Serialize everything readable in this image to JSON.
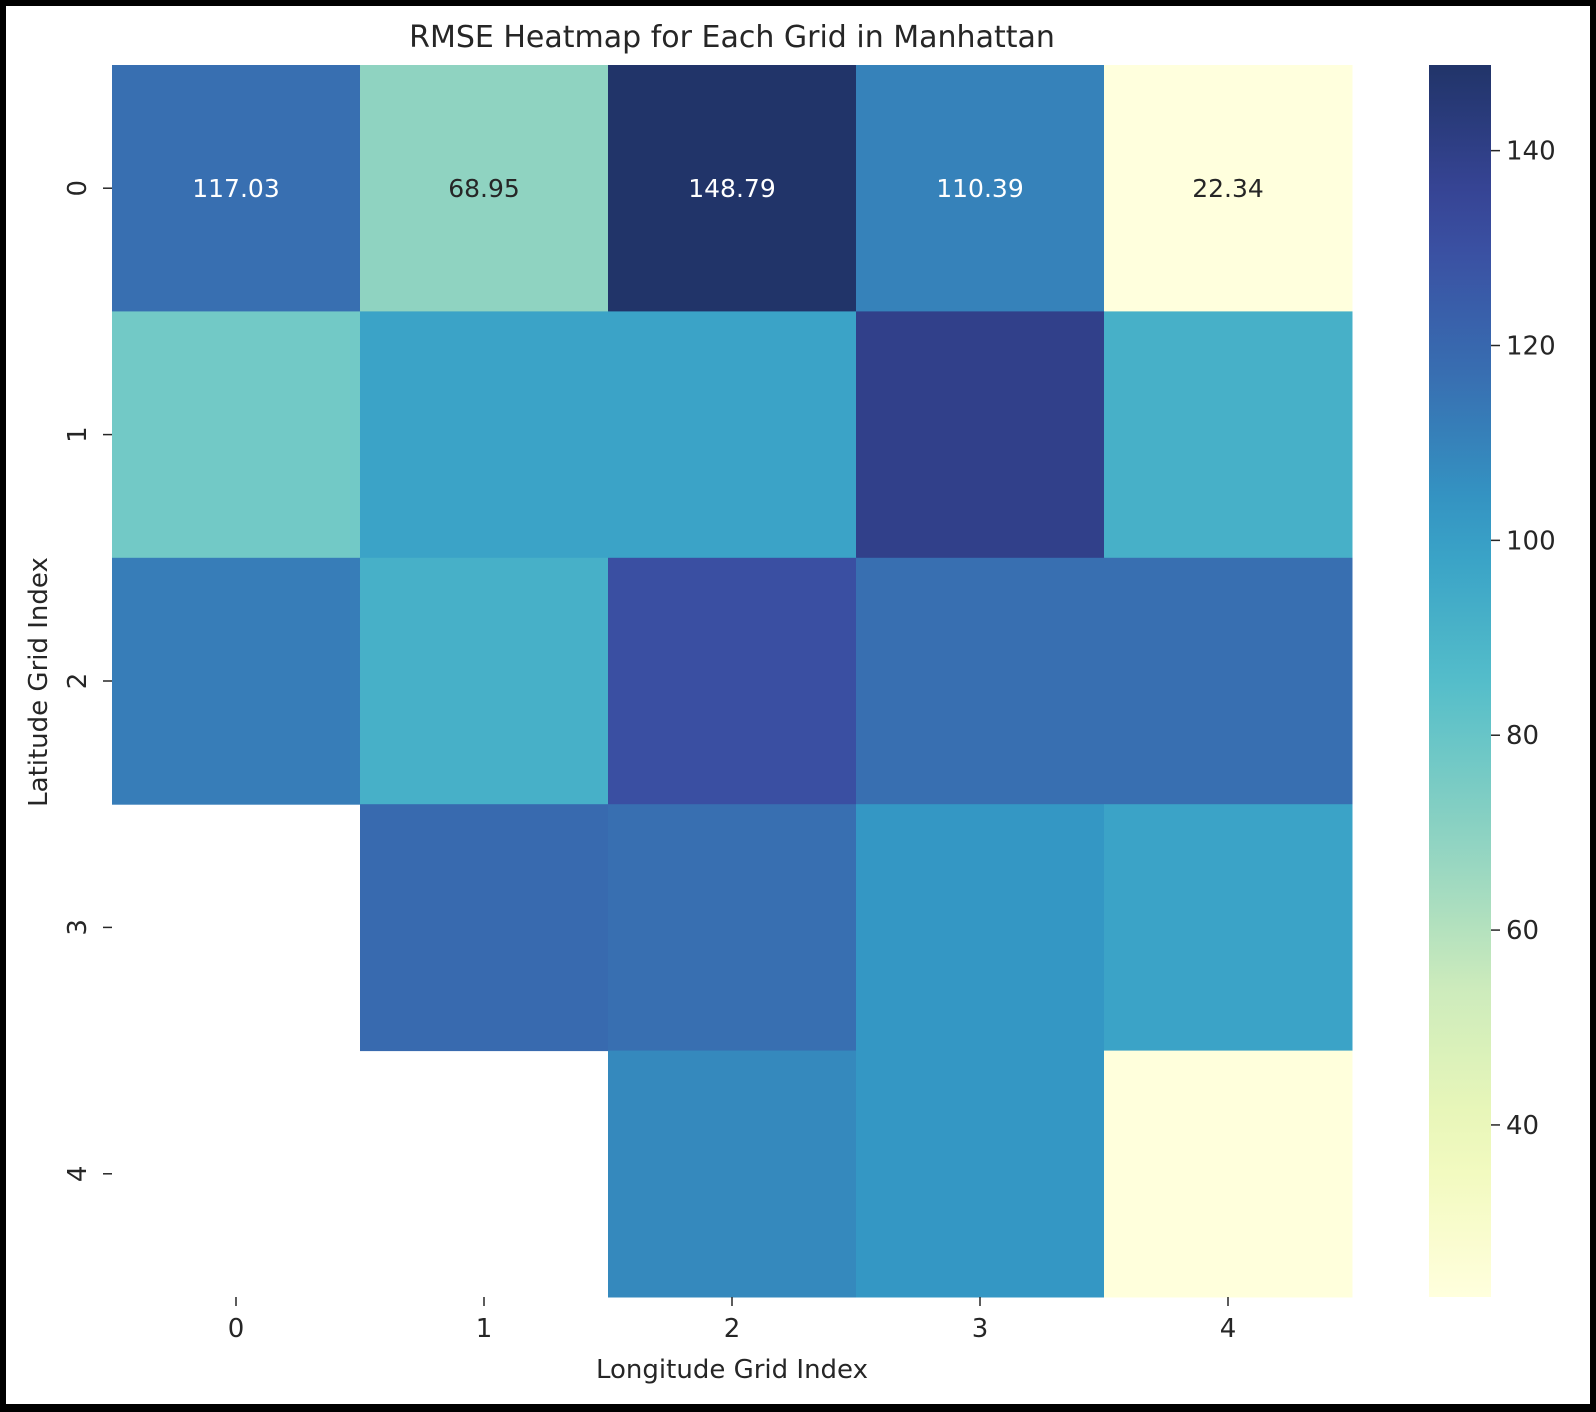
{
  "chart_data": {
    "type": "heatmap",
    "title": "RMSE Heatmap for Each Grid in Manhattan",
    "xlabel": "Longitude Grid Index",
    "ylabel": "Latitude Grid Index",
    "x_categories": [
      "0",
      "1",
      "2",
      "3",
      "4"
    ],
    "y_categories": [
      "0",
      "1",
      "2",
      "3",
      "4"
    ],
    "values": [
      [
        117.03,
        68.95,
        148.79,
        110.39,
        22.34
      ],
      [
        77,
        98,
        98,
        139,
        92
      ],
      [
        112,
        92,
        130,
        117,
        117
      ],
      [
        null,
        119,
        117,
        103,
        98
      ],
      [
        null,
        null,
        108,
        103,
        22.5
      ]
    ],
    "annotated_cells": [
      [
        0,
        0
      ],
      [
        0,
        1
      ],
      [
        0,
        2
      ],
      [
        0,
        3
      ],
      [
        0,
        4
      ]
    ],
    "colormap": "YlGnBu",
    "value_range": [
      22.34,
      148.79
    ],
    "colorbar_ticks": [
      40,
      60,
      80,
      100,
      120,
      140
    ],
    "grid": false
  }
}
